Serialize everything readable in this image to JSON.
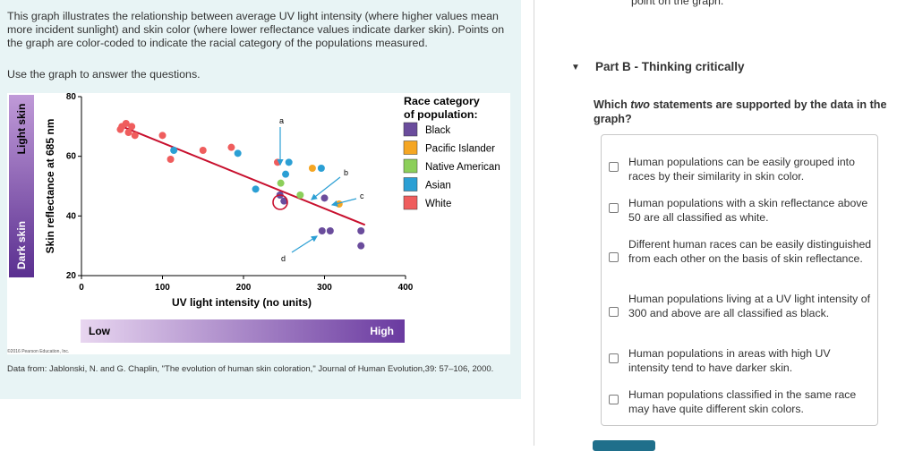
{
  "intro_text": "This graph illustrates the relationship between average UV light intensity (where higher values mean more incident sunlight) and skin color (where lower reflectance values indicate darker skin). Points on the graph are color-coded to indicate the racial category of the populations measured.",
  "use_text": "Use the graph to answer the questions.",
  "figure": {
    "side_light": "Light skin",
    "side_dark": "Dark skin",
    "low_label": "Low",
    "high_label": "High",
    "copyright": "©2016 Pearson Education, Inc."
  },
  "chart_data": {
    "type": "scatter",
    "xlabel": "UV light intensity (no units)",
    "ylabel": "Skin reflectance at 685 nm",
    "xlim": [
      0,
      400
    ],
    "ylim": [
      20,
      80
    ],
    "xticks": [
      "0",
      "100",
      "200",
      "300",
      "400"
    ],
    "yticks": [
      "20",
      "40",
      "60",
      "80"
    ],
    "legend_title": "Race category of population:",
    "legend": [
      {
        "name": "Black",
        "color": "#6a4c9c"
      },
      {
        "name": "Pacific Islander",
        "color": "#f5a623"
      },
      {
        "name": "Native American",
        "color": "#8ccf5a"
      },
      {
        "name": "Asian",
        "color": "#2b9fd4"
      },
      {
        "name": "White",
        "color": "#ef5d5d"
      }
    ],
    "annotations": [
      "a",
      "b",
      "c",
      "d"
    ],
    "trend_line": {
      "x": [
        50,
        350
      ],
      "y": [
        70,
        37
      ]
    },
    "points": [
      {
        "x": 50,
        "y": 70,
        "cat": "White"
      },
      {
        "x": 55,
        "y": 71,
        "cat": "White"
      },
      {
        "x": 62,
        "y": 70,
        "cat": "White"
      },
      {
        "x": 58,
        "y": 68,
        "cat": "White"
      },
      {
        "x": 48,
        "y": 69,
        "cat": "White"
      },
      {
        "x": 66,
        "y": 67,
        "cat": "White"
      },
      {
        "x": 100,
        "y": 67,
        "cat": "White"
      },
      {
        "x": 110,
        "y": 59,
        "cat": "White"
      },
      {
        "x": 114,
        "y": 62,
        "cat": "Asian"
      },
      {
        "x": 150,
        "y": 62,
        "cat": "White"
      },
      {
        "x": 185,
        "y": 63,
        "cat": "White"
      },
      {
        "x": 193,
        "y": 61,
        "cat": "Asian"
      },
      {
        "x": 215,
        "y": 49,
        "cat": "Asian"
      },
      {
        "x": 242,
        "y": 58,
        "cat": "White"
      },
      {
        "x": 256,
        "y": 58,
        "cat": "Asian"
      },
      {
        "x": 252,
        "y": 54,
        "cat": "Asian"
      },
      {
        "x": 246,
        "y": 51,
        "cat": "Native American"
      },
      {
        "x": 245,
        "y": 47,
        "cat": "Black"
      },
      {
        "x": 250,
        "y": 45,
        "cat": "Black"
      },
      {
        "x": 270,
        "y": 47,
        "cat": "Native American"
      },
      {
        "x": 285,
        "y": 56,
        "cat": "Pacific Islander"
      },
      {
        "x": 296,
        "y": 56,
        "cat": "Asian"
      },
      {
        "x": 300,
        "y": 46,
        "cat": "Black"
      },
      {
        "x": 318,
        "y": 44,
        "cat": "Pacific Islander"
      },
      {
        "x": 297,
        "y": 35,
        "cat": "Black"
      },
      {
        "x": 307,
        "y": 35,
        "cat": "Black"
      },
      {
        "x": 345,
        "y": 35,
        "cat": "Black"
      },
      {
        "x": 345,
        "y": 30,
        "cat": "Black"
      }
    ]
  },
  "source_text": "Data from: Jablonski, N. and G. Chaplin, \"The evolution of human skin coloration,\" Journal of Human Evolution,39: 57–106, 2000.",
  "top_cut_text": "point on the graph.",
  "part_title": "Part B - Thinking critically",
  "question": {
    "before": "Which ",
    "emph": "two",
    "after": " statements are supported by the data in the graph?"
  },
  "options": [
    "Human populations can be easily grouped into races by their similarity in skin color.",
    "Human populations with a skin reflectance above 50 are all classified as white.",
    "Different human races can be easily distinguished from each other on the basis of skin reflectance.",
    "Human populations living at a UV light intensity of 300 and above are all classified as black.",
    "Human populations in areas with high UV intensity tend to have darker skin.",
    "Human populations classified in the same race may have quite different skin colors."
  ]
}
